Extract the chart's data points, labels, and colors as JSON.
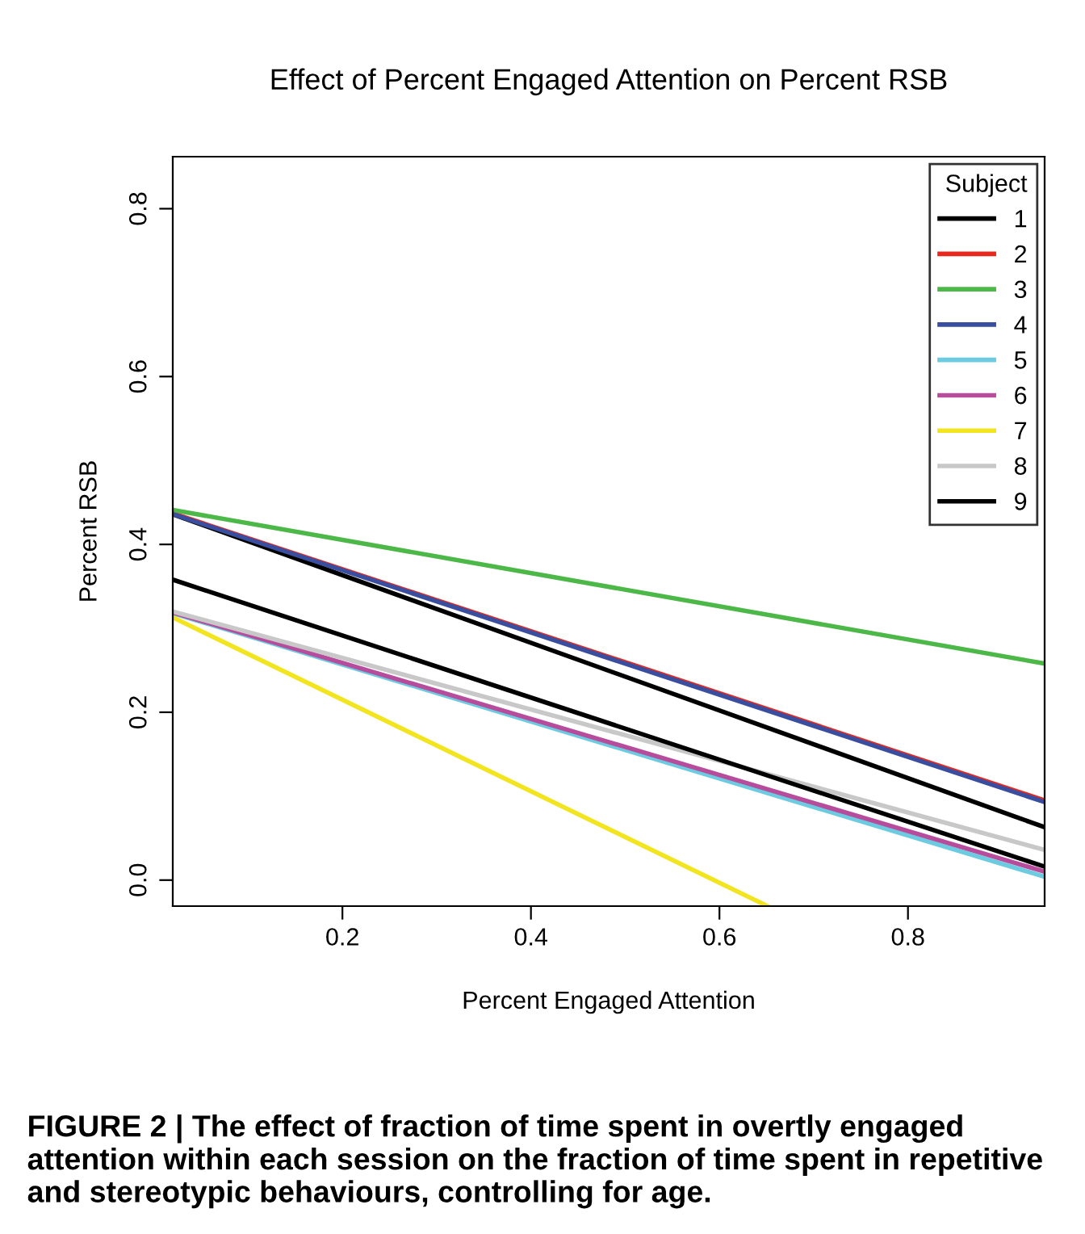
{
  "chart_data": {
    "type": "line",
    "title": "Effect of Percent Engaged Attention on Percent RSB",
    "xlabel": "Percent Engaged Attention",
    "ylabel": "Percent RSB",
    "legend_title": "Subject",
    "legend": "top right",
    "grid": false,
    "marker": "none",
    "line_style": "solid",
    "x": [
      0.02,
      0.945
    ],
    "xlim": [
      0.02,
      0.945
    ],
    "ylim": [
      -0.031,
      0.862
    ],
    "xticks": [
      0.2,
      0.4,
      0.6,
      0.8
    ],
    "yticks": [
      {
        "value": 0,
        "label": "0.0"
      },
      0.2,
      0.4,
      0.6,
      0.8
    ],
    "series": [
      {
        "name": "1",
        "color": "#000000",
        "values": [
          0.436,
          0.063
        ]
      },
      {
        "name": "2",
        "color": "#e8281e",
        "values": [
          0.437,
          0.095
        ]
      },
      {
        "name": "3",
        "color": "#4cb848",
        "values": [
          0.441,
          0.258
        ]
      },
      {
        "name": "4",
        "color": "#3a4ea0",
        "values": [
          0.436,
          0.093
        ]
      },
      {
        "name": "5",
        "color": "#6ccbe0",
        "values": [
          0.318,
          0.004
        ]
      },
      {
        "name": "6",
        "color": "#b84c9c",
        "values": [
          0.319,
          0.01
        ]
      },
      {
        "name": "7",
        "color": "#f2e41e",
        "x": [
          0.02,
          0.651
        ],
        "values": [
          0.313,
          -0.031
        ]
      },
      {
        "name": "8",
        "color": "#c8c8c8",
        "values": [
          0.32,
          0.036
        ]
      },
      {
        "name": "9",
        "color": "#000000",
        "values": [
          0.358,
          0.016
        ]
      }
    ],
    "annotations": [
      "FIGURE 2 | The effect of fraction of time spent in overtly engaged attention within each session on the fraction of time spent in repetitive and stereotypic behaviours, controlling for age."
    ]
  }
}
